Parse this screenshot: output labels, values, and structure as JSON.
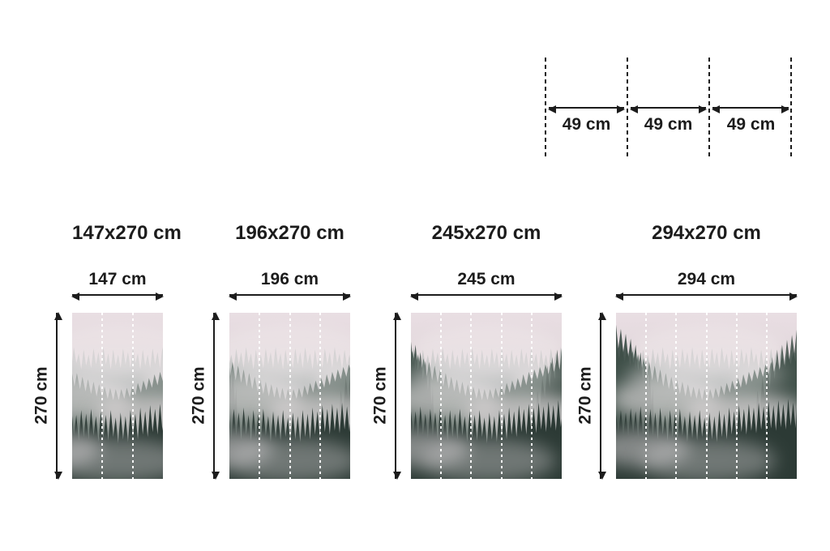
{
  "colors": {
    "line": "#1c1c1c",
    "panel_line": "#ffffff",
    "sky_top": "#e9dee3",
    "sky_mid": "#dcd3d6",
    "sky_bottom": "#a9b3ad",
    "mist": "#efe7ea",
    "tree_far": "#8d9c97",
    "tree_mid": "#50625a",
    "tree_side": "#3c4c45",
    "tree_near": "#2c3a35"
  },
  "roll_diagram": {
    "segments": [
      {
        "label": "49 cm"
      },
      {
        "label": "49 cm"
      },
      {
        "label": "49 cm"
      }
    ]
  },
  "sizes": [
    {
      "title": "147x270 cm",
      "width_label": "147 cm",
      "height_label": "270 cm",
      "panel_count": 3
    },
    {
      "title": "196x270 cm",
      "width_label": "196 cm",
      "height_label": "270 cm",
      "panel_count": 4
    },
    {
      "title": "245x270 cm",
      "width_label": "245 cm",
      "height_label": "270 cm",
      "panel_count": 5
    },
    {
      "title": "294x270 cm",
      "width_label": "294 cm",
      "height_label": "270 cm",
      "panel_count": 6
    }
  ]
}
